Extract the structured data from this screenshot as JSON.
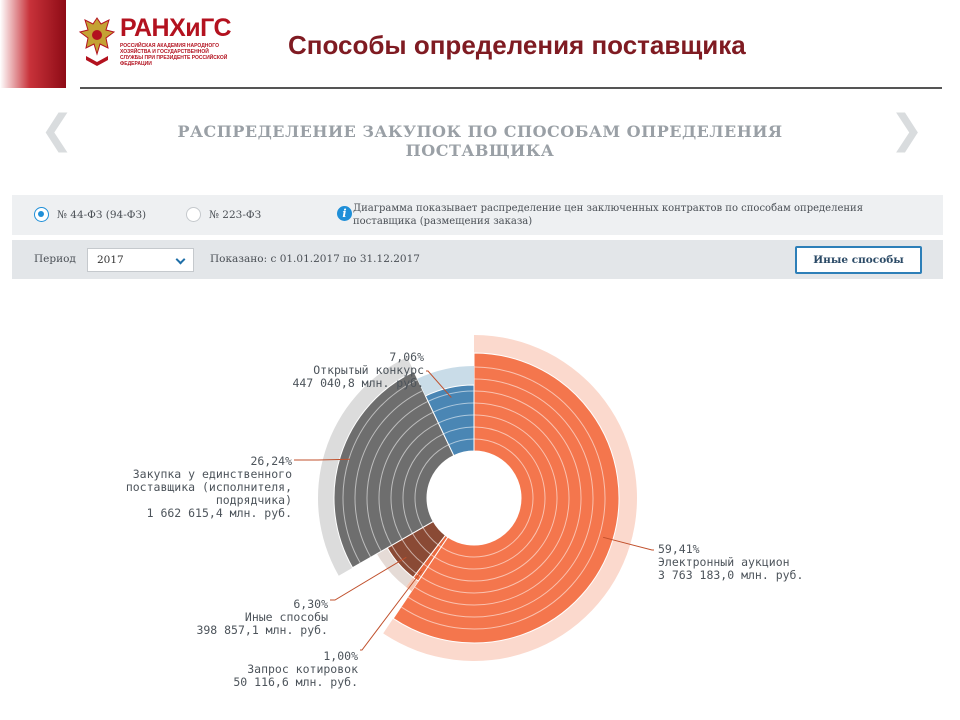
{
  "header": {
    "logo_title": "РАНХиГС",
    "logo_subtitle": "Российская академия народного хозяйства и государственной службы при Президенте Российской Федерации",
    "slide_title": "Способы определения поставщика"
  },
  "section": {
    "heading": "РАСПРЕДЕЛЕНИЕ ЗАКУПОК ПО СПОСОБАМ ОПРЕДЕЛЕНИЯ ПОСТАВЩИКА",
    "prev_icon": "chevron-left-icon",
    "next_icon": "chevron-right-icon"
  },
  "filters": {
    "law_options": [
      {
        "label": "№ 44-ФЗ (94-ФЗ)",
        "selected": true
      },
      {
        "label": "№ 223-ФЗ",
        "selected": false
      }
    ],
    "info_text": "Диаграмма показывает распределение цен заключенных контрактов по способам определения поставщика (размещения заказа)",
    "period_label": "Период",
    "period_value": "2017",
    "shown_text": "Показано: с 01.01.2017 по 31.12.2017",
    "other_button": "Иные способы"
  },
  "colors": {
    "accent": "#b3121f",
    "radio_active": "#1f8fd8",
    "button_border": "#2d7fb8"
  },
  "chart_data": {
    "type": "pie",
    "title": "",
    "unit": "млн. руб.",
    "slices": [
      {
        "name": "Электронный аукцион",
        "percent_label": "59,41%",
        "value_label": "3 763 183,0 млн. руб.",
        "percent": 59.41,
        "value": 3763183.0,
        "color": "#f4764d",
        "outer_color": "#fbd9cd"
      },
      {
        "name": "Запрос котировок",
        "percent_label": "1,00%",
        "value_label": "50 116,6 млн. руб.",
        "percent": 1.0,
        "value": 50116.6,
        "color": "#e8693f",
        "outer_color": "#f6c6b2"
      },
      {
        "name": "Иные способы",
        "percent_label": "6,30%",
        "value_label": "398 857,1 млн. руб.",
        "percent": 6.3,
        "value": 398857.1,
        "color": "#8a4a35",
        "outer_color": "#e5dbd6"
      },
      {
        "name": "Закупка у единственного поставщика (исполнителя, подрядчика)",
        "name_lines": [
          "Закупка у единственного",
          "поставщика (исполнителя,",
          "подрядчика)"
        ],
        "percent_label": "26,24%",
        "value_label": "1 662 615,4 млн. руб.",
        "percent": 26.24,
        "value": 1662615.4,
        "color": "#6e6e6e",
        "outer_color": "#dcdcdc"
      },
      {
        "name": "Открытый конкурс",
        "percent_label": "7,06%",
        "value_label": "447 040,8 млн. руб.",
        "percent": 7.06,
        "value": 447040.8,
        "color": "#4a86b4",
        "outer_color": "#c9dce8"
      }
    ]
  }
}
